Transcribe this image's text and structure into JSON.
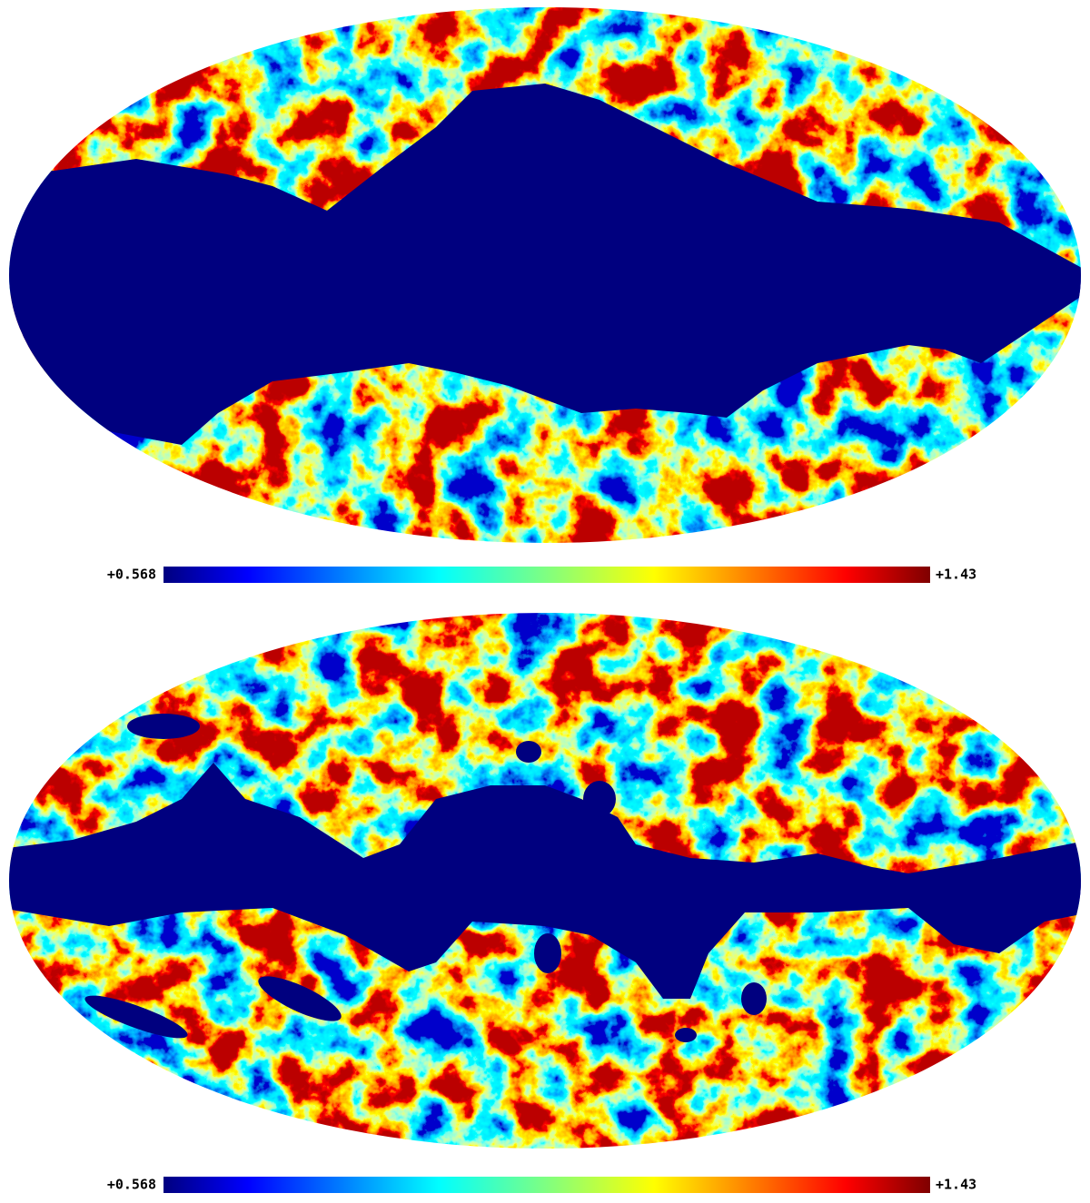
{
  "maps": [
    {
      "colorbar": {
        "min_label": "+0.568",
        "max_label": "+1.43"
      }
    },
    {
      "colorbar": {
        "min_label": "+0.568",
        "max_label": "+1.43"
      }
    }
  ]
}
